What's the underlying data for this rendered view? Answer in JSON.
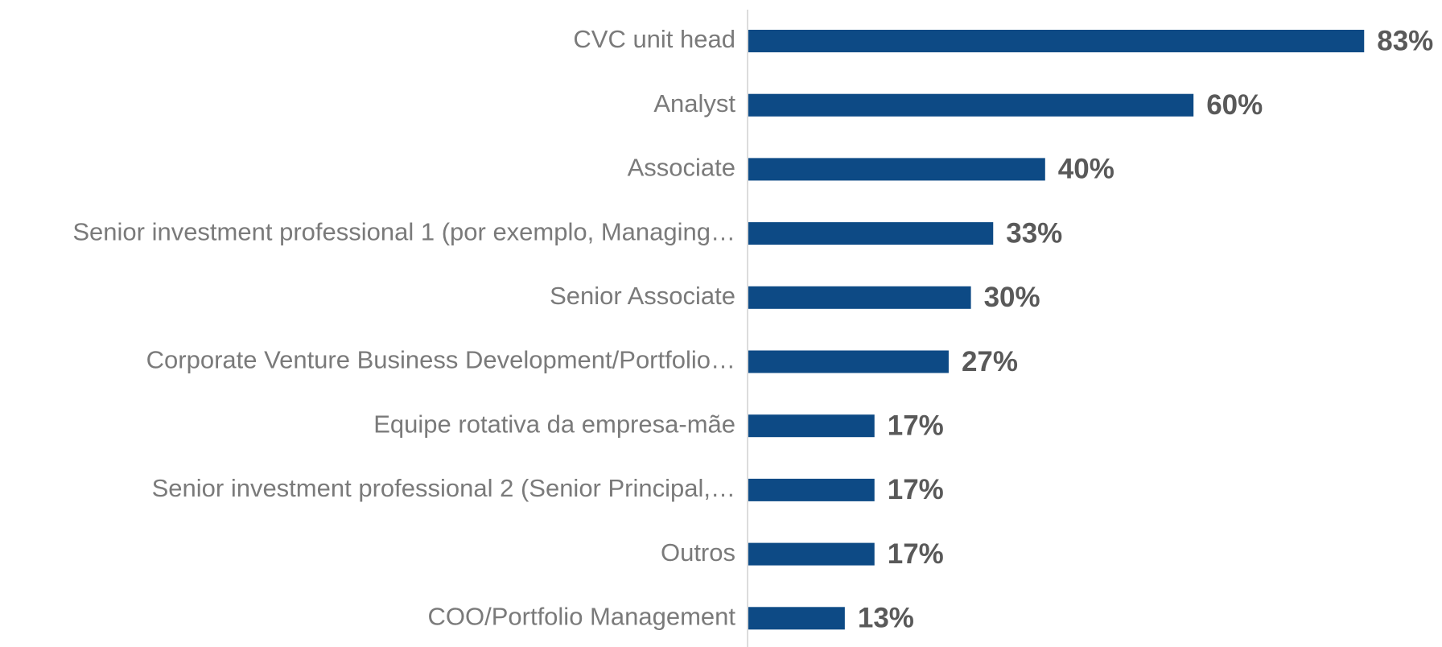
{
  "chart_data": {
    "type": "bar",
    "orientation": "horizontal",
    "categories": [
      "CVC unit head",
      "Analyst",
      "Associate",
      "Senior investment professional 1 (por exemplo, Managing…",
      "Senior Associate",
      "Corporate Venture Business Development/Portfolio…",
      "Equipe rotativa da empresa-mãe",
      "Senior investment professional 2 (Senior Principal,…",
      "Outros",
      "COO/Portfolio Management"
    ],
    "values": [
      83,
      60,
      40,
      33,
      30,
      27,
      17,
      17,
      17,
      13
    ],
    "value_labels": [
      "83%",
      "60%",
      "40%",
      "33%",
      "30%",
      "27%",
      "17%",
      "17%",
      "17%",
      "13%"
    ],
    "color": "#0d4a85"
  }
}
